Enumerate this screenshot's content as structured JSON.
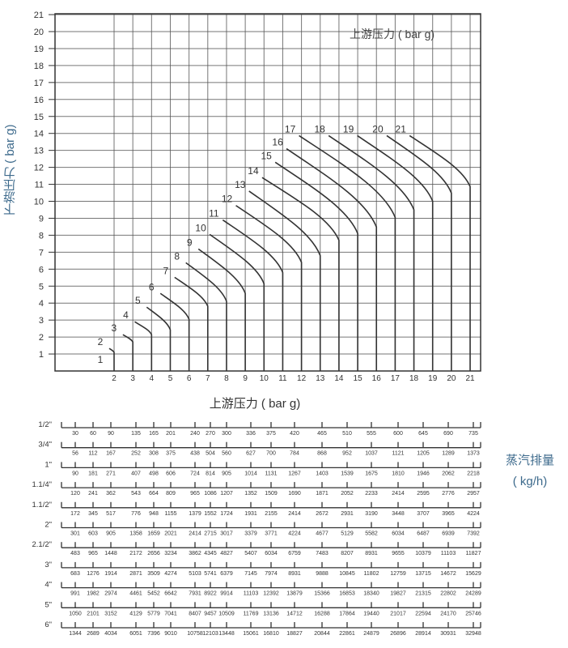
{
  "chart_data": [
    {
      "type": "line",
      "ylabel": "下游压力 ( bar g)",
      "xlabel": "上游压力 ( bar g)",
      "inner_label": "上游压力 ( bar g)",
      "xlim": [
        0,
        21
      ],
      "ylim": [
        0,
        21
      ],
      "x_ticks": [
        2,
        3,
        4,
        5,
        6,
        7,
        8,
        9,
        10,
        11,
        12,
        13,
        14,
        15,
        16,
        17,
        18,
        19,
        20,
        21
      ],
      "y_ticks": [
        1,
        2,
        3,
        4,
        5,
        6,
        7,
        8,
        9,
        10,
        11,
        12,
        13,
        14,
        15,
        16,
        17,
        18,
        19,
        20,
        21
      ],
      "grid": true,
      "line_color": "#333333",
      "single_label": "1",
      "curves": [
        {
          "label": "2",
          "start": [
            1.74,
            1.33
          ],
          "end": [
            2,
            1.1
          ]
        },
        {
          "label": "3",
          "start": [
            2.47,
            2.14
          ],
          "end": [
            3,
            1.71
          ]
        },
        {
          "label": "4",
          "start": [
            3.1,
            2.9
          ],
          "end": [
            4,
            2.14
          ]
        },
        {
          "label": "5",
          "start": [
            3.74,
            3.76
          ],
          "end": [
            5,
            2.43
          ]
        },
        {
          "label": "6",
          "start": [
            4.47,
            4.57
          ],
          "end": [
            6,
            3.05
          ]
        },
        {
          "label": "7",
          "start": [
            5.23,
            5.52
          ],
          "end": [
            7,
            3.81
          ]
        },
        {
          "label": "8",
          "start": [
            5.83,
            6.38
          ],
          "end": [
            8,
            4.1
          ]
        },
        {
          "label": "9",
          "start": [
            6.5,
            7.19
          ],
          "end": [
            9,
            4.57
          ]
        },
        {
          "label": "10",
          "start": [
            7.1,
            8.05
          ],
          "end": [
            10,
            5.14
          ]
        },
        {
          "label": "11",
          "start": [
            7.8,
            8.9
          ],
          "end": [
            11,
            5.8
          ]
        },
        {
          "label": "12",
          "start": [
            8.5,
            9.75
          ],
          "end": [
            12,
            6.4
          ]
        },
        {
          "label": "13",
          "start": [
            9.2,
            10.6
          ],
          "end": [
            13,
            6.8
          ]
        },
        {
          "label": "14",
          "start": [
            9.9,
            11.4
          ],
          "end": [
            14,
            7.7
          ]
        },
        {
          "label": "15",
          "start": [
            10.6,
            12.3
          ],
          "end": [
            15,
            8.1
          ]
        },
        {
          "label": "16",
          "start": [
            11.2,
            13.1
          ],
          "end": [
            16,
            8.48
          ]
        },
        {
          "label": "17",
          "start": [
            11.87,
            13.87
          ],
          "end": [
            17,
            9.05
          ]
        },
        {
          "label": "18",
          "start": [
            13.45,
            13.87
          ],
          "end": [
            18,
            9.5
          ]
        },
        {
          "label": "19",
          "start": [
            14.98,
            13.87
          ],
          "end": [
            19,
            10.0
          ]
        },
        {
          "label": "20",
          "start": [
            16.55,
            13.87
          ],
          "end": [
            20,
            10.48
          ]
        },
        {
          "label": "21",
          "start": [
            17.77,
            13.87
          ],
          "end": [
            21,
            10.86
          ]
        }
      ]
    },
    {
      "type": "table",
      "title": "蒸汽排量",
      "unit": "( kg/h)",
      "rows": [
        {
          "size": "1/2\"",
          "values": [
            "30",
            "60",
            "90",
            "135",
            "165",
            "201",
            "240",
            "270",
            "300",
            "336",
            "375",
            "420",
            "465",
            "510",
            "555",
            "600",
            "645",
            "690",
            "735"
          ]
        },
        {
          "size": "3/4\"",
          "values": [
            "56",
            "112",
            "167",
            "252",
            "308",
            "375",
            "438",
            "504",
            "560",
            "627",
            "700",
            "784",
            "868",
            "952",
            "1037",
            "1121",
            "1205",
            "1289",
            "1373"
          ]
        },
        {
          "size": "1\"",
          "values": [
            "90",
            "181",
            "271",
            "407",
            "498",
            "606",
            "724",
            "814",
            "905",
            "1014",
            "1131",
            "1267",
            "1403",
            "1539",
            "1675",
            "1810",
            "1946",
            "2062",
            "2218"
          ]
        },
        {
          "size": "1.1/4\"",
          "values": [
            "120",
            "241",
            "362",
            "543",
            "664",
            "809",
            "965",
            "1086",
            "1207",
            "1352",
            "1509",
            "1690",
            "1871",
            "2052",
            "2233",
            "2414",
            "2595",
            "2776",
            "2957"
          ]
        },
        {
          "size": "1.1/2\"",
          "values": [
            "172",
            "345",
            "517",
            "776",
            "948",
            "1155",
            "1379",
            "1552",
            "1724",
            "1931",
            "2155",
            "2414",
            "2672",
            "2931",
            "3190",
            "3448",
            "3707",
            "3965",
            "4224"
          ]
        },
        {
          "size": "2\"",
          "values": [
            "301",
            "603",
            "905",
            "1358",
            "1659",
            "2021",
            "2414",
            "2715",
            "3017",
            "3379",
            "3771",
            "4224",
            "4677",
            "5129",
            "5582",
            "6034",
            "6487",
            "6939",
            "7392"
          ]
        },
        {
          "size": "2.1/2\"",
          "values": [
            "483",
            "965",
            "1448",
            "2172",
            "2656",
            "3234",
            "3862",
            "4345",
            "4827",
            "5407",
            "6034",
            "6759",
            "7483",
            "8207",
            "8931",
            "9655",
            "10379",
            "11103",
            "11827"
          ]
        },
        {
          "size": "3\"",
          "values": [
            "683",
            "1276",
            "1914",
            "2871",
            "3509",
            "4274",
            "5103",
            "5741",
            "6379",
            "7145",
            "7974",
            "8931",
            "9888",
            "10845",
            "11802",
            "12759",
            "13715",
            "14672",
            "15629"
          ]
        },
        {
          "size": "4\"",
          "values": [
            "991",
            "1982",
            "2974",
            "4461",
            "5452",
            "6642",
            "7931",
            "8922",
            "9914",
            "11103",
            "12392",
            "13879",
            "15366",
            "16853",
            "18340",
            "19827",
            "21315",
            "22802",
            "24289"
          ]
        },
        {
          "size": "5\"",
          "values": [
            "1050",
            "2101",
            "3152",
            "4129",
            "5779",
            "7041",
            "8407",
            "9457",
            "10509",
            "11769",
            "13136",
            "14712",
            "16288",
            "17864",
            "19440",
            "21017",
            "22594",
            "24170",
            "25746"
          ]
        },
        {
          "size": "6\"",
          "values": [
            "1344",
            "2689",
            "4034",
            "6051",
            "7396",
            "9010",
            "10758",
            "12103",
            "13448",
            "15061",
            "16810",
            "18827",
            "20844",
            "22861",
            "24879",
            "26896",
            "28914",
            "30931",
            "32948"
          ]
        }
      ]
    }
  ],
  "colors": {
    "label_blue": "#3d6a8c",
    "grid": "#555555",
    "text": "#333333"
  }
}
